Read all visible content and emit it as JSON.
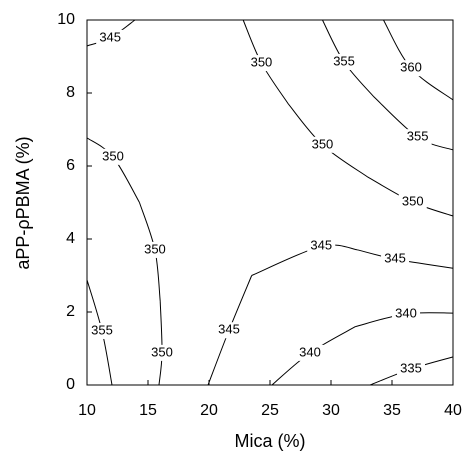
{
  "chart_data": {
    "type": "contour",
    "x_label": "Mica (%)",
    "y_label": "aPP-ρPBMA (%)",
    "xlim": [
      10,
      40
    ],
    "xticks": [
      10,
      15,
      20,
      25,
      30,
      35,
      40
    ],
    "ylim": [
      0,
      10
    ],
    "yticks": [
      0,
      2,
      4,
      6,
      8,
      10
    ],
    "color": "#000000",
    "contours": [
      {
        "level": 345,
        "x": [
          10,
          11.9,
          13.93
        ],
        "y": [
          9.29,
          9.51,
          10
        ]
      },
      {
        "level": 350,
        "x": [
          22.8,
          24.3,
          26.5
        ],
        "y": [
          10,
          8.82,
          7.7
        ]
      },
      {
        "level": 350,
        "x": [
          26.5,
          29.3,
          33
        ],
        "y": [
          7.7,
          6.58,
          5.7
        ]
      },
      {
        "level": 350,
        "x": [
          33,
          36.7,
          40
        ],
        "y": [
          5.7,
          5.01,
          4.63
        ]
      },
      {
        "level": 355,
        "x": [
          29.3,
          31.07,
          33.5
        ],
        "y": [
          10,
          8.85,
          7.9
        ]
      },
      {
        "level": 355,
        "x": [
          33.5,
          37.1,
          40
        ],
        "y": [
          7.9,
          6.79,
          6.44
        ]
      },
      {
        "level": 360,
        "x": [
          34.3,
          36.56,
          40
        ],
        "y": [
          10,
          8.68,
          7.81
        ]
      },
      {
        "level": 350,
        "x": [
          10,
          12.13,
          14.3
        ],
        "y": [
          6.77,
          6.25,
          5.0
        ]
      },
      {
        "level": 350,
        "x": [
          14.3,
          15.57,
          16.0
        ],
        "y": [
          5.0,
          3.7,
          2.3
        ]
      },
      {
        "level": 350,
        "x": [
          16.0,
          16.15,
          15.9
        ],
        "y": [
          2.3,
          0.88,
          0
        ]
      },
      {
        "level": 355,
        "x": [
          10,
          11.23,
          12.05
        ],
        "y": [
          2.88,
          1.48,
          0
        ]
      },
      {
        "level": 345,
        "x": [
          19.92,
          21.64,
          23.5
        ],
        "y": [
          0,
          1.5,
          3.0
        ]
      },
      {
        "level": 345,
        "x": [
          23.5,
          29.2,
          32.2
        ],
        "y": [
          3.0,
          3.8,
          3.7
        ]
      },
      {
        "level": 345,
        "x": [
          32.2,
          35.25,
          40
        ],
        "y": [
          3.7,
          3.45,
          3.2
        ]
      },
      {
        "level": 340,
        "x": [
          25.16,
          28.28,
          32
        ],
        "y": [
          0,
          0.88,
          1.6
        ]
      },
      {
        "level": 340,
        "x": [
          32,
          36.15,
          40
        ],
        "y": [
          1.6,
          1.95,
          1.97
        ]
      },
      {
        "level": 335,
        "x": [
          33.2,
          36.56,
          40
        ],
        "y": [
          0,
          0.44,
          0.77
        ]
      }
    ]
  }
}
